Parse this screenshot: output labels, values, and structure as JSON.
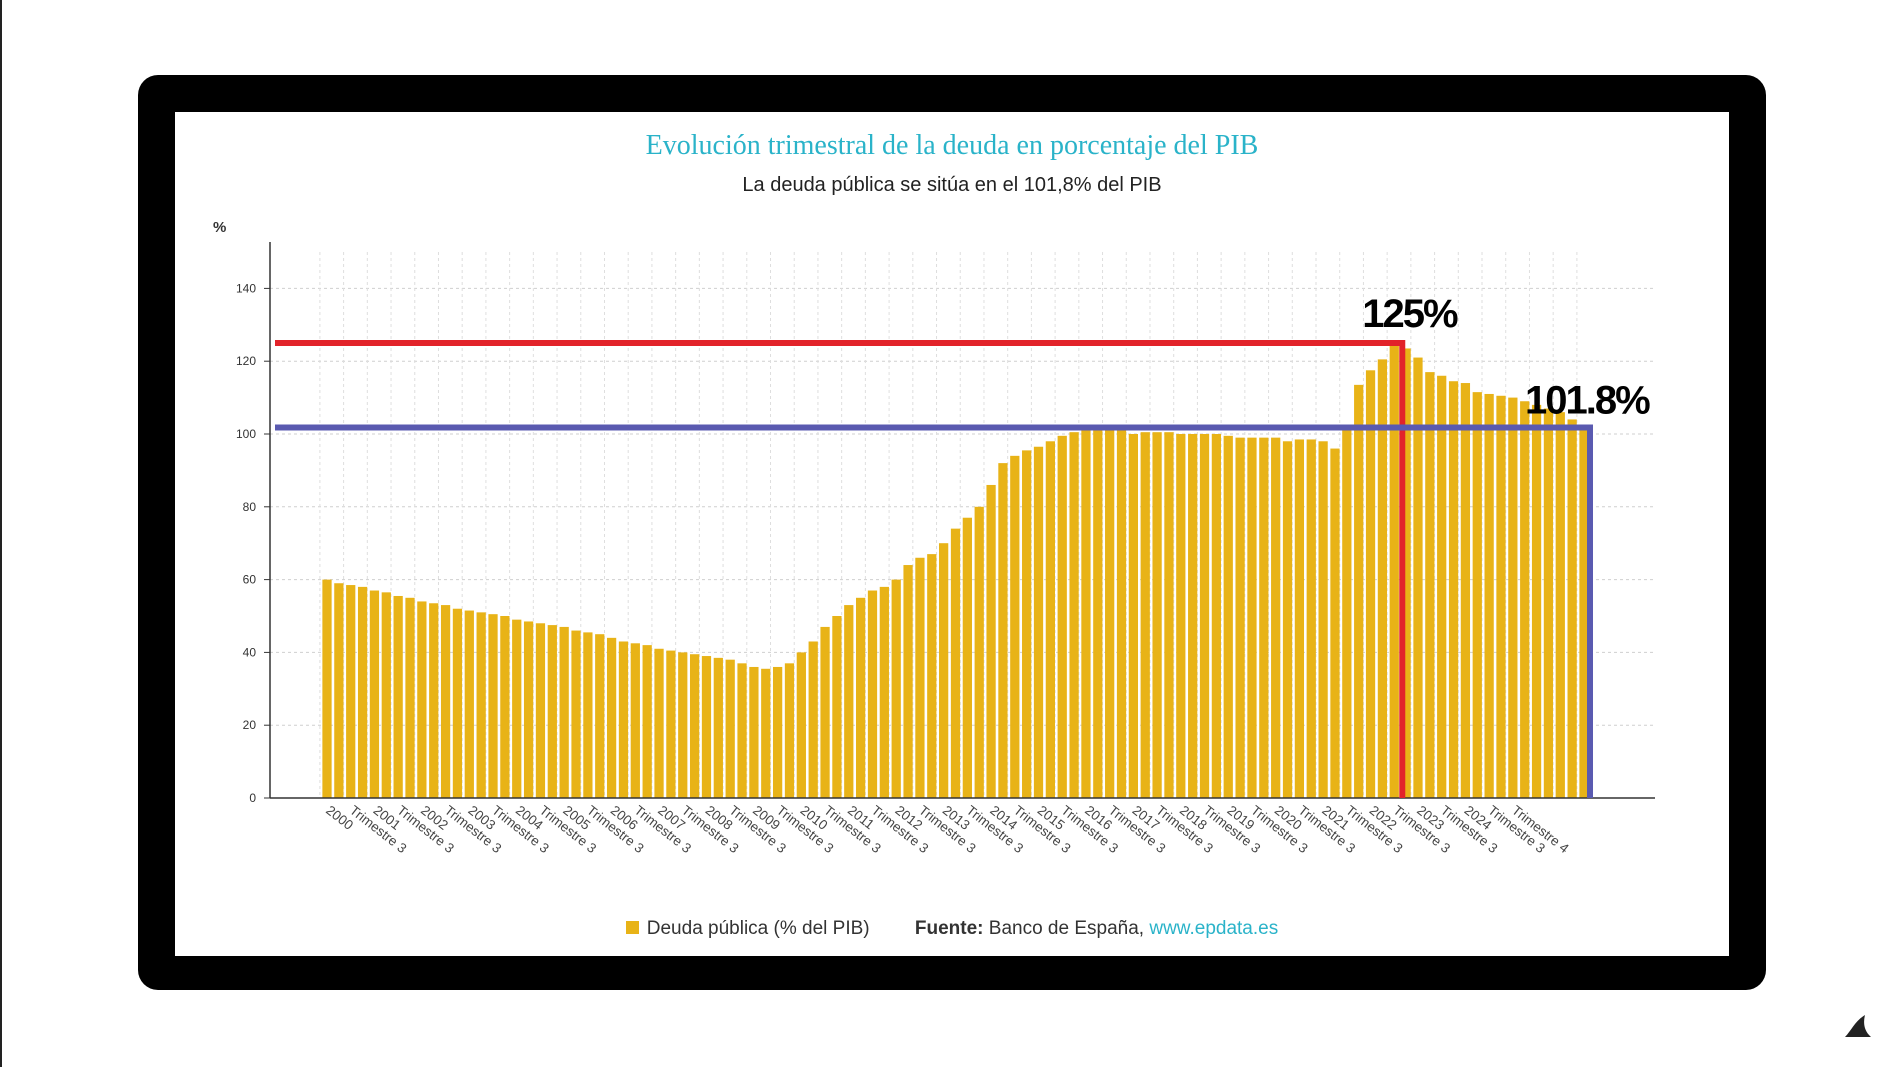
{
  "chart_data": {
    "type": "bar",
    "title": "Evolución trimestral de la deuda en porcentaje del PIB",
    "subtitle": "La deuda pública se sitúa en el 101,8% del PIB",
    "ylabel": "%",
    "ylim": [
      0,
      150
    ],
    "yticks": [
      0,
      20,
      40,
      60,
      80,
      100,
      120,
      140
    ],
    "grid": true,
    "color": "#e8b317",
    "x_tick_labels": [
      "2000",
      "Trimestre 3",
      "2001",
      "Trimestre 3",
      "2002",
      "Trimestre 3",
      "2003",
      "Trimestre 3",
      "2004",
      "Trimestre 3",
      "2005",
      "Trimestre 3",
      "2006",
      "Trimestre 3",
      "2007",
      "Trimestre 3",
      "2008",
      "Trimestre 3",
      "2009",
      "Trimestre 3",
      "2010",
      "Trimestre 3",
      "2011",
      "Trimestre 3",
      "2012",
      "Trimestre 3",
      "2013",
      "Trimestre 3",
      "2014",
      "Trimestre 3",
      "2015",
      "Trimestre 3",
      "2016",
      "Trimestre 3",
      "2017",
      "Trimestre 3",
      "2018",
      "Trimestre 3",
      "2019",
      "Trimestre 3",
      "2020",
      "Trimestre 3",
      "2021",
      "Trimestre 3",
      "2022",
      "Trimestre 3",
      "2023",
      "Trimestre 3",
      "2024",
      "Trimestre 3",
      "Trimestre 4"
    ],
    "series": [
      {
        "name": "Deuda pública (% del PIB)",
        "values": [
          60,
          59,
          58.5,
          58,
          57,
          56.5,
          55.5,
          55,
          54,
          53.5,
          53,
          52,
          51.5,
          51,
          50.5,
          50,
          49,
          48.5,
          48,
          47.5,
          47,
          46,
          45.5,
          45,
          44,
          43,
          42.5,
          42,
          41,
          40.5,
          40,
          39.5,
          39,
          38.5,
          38,
          37,
          36,
          35.5,
          36,
          37,
          40,
          43,
          47,
          50,
          53,
          55,
          57,
          58,
          60,
          64,
          66,
          67,
          70,
          74,
          77,
          80,
          86,
          92,
          94,
          95.5,
          96.5,
          98,
          99.5,
          100.5,
          101,
          101,
          101,
          101,
          100,
          100.5,
          100.5,
          100.5,
          100,
          100,
          100,
          100,
          99.5,
          99,
          99,
          99,
          99,
          98,
          98.5,
          98.5,
          98,
          96,
          102,
          113.5,
          117.5,
          120.5,
          125,
          123.5,
          121,
          117,
          116,
          114.5,
          114,
          111.5,
          111,
          110.5,
          110,
          109,
          108,
          107,
          106,
          104,
          101.8
        ]
      }
    ],
    "annotations": [
      {
        "text": "125%",
        "value": 125,
        "color": "#e2232a"
      },
      {
        "text": "101.8%",
        "value": 101.8,
        "color": "#5a5ab0"
      }
    ]
  },
  "legend": {
    "series_label": "Deuda pública (% del PIB)",
    "source_label": "Fuente:",
    "source_text": "Banco de España,",
    "source_link": "www.epdata.es"
  }
}
